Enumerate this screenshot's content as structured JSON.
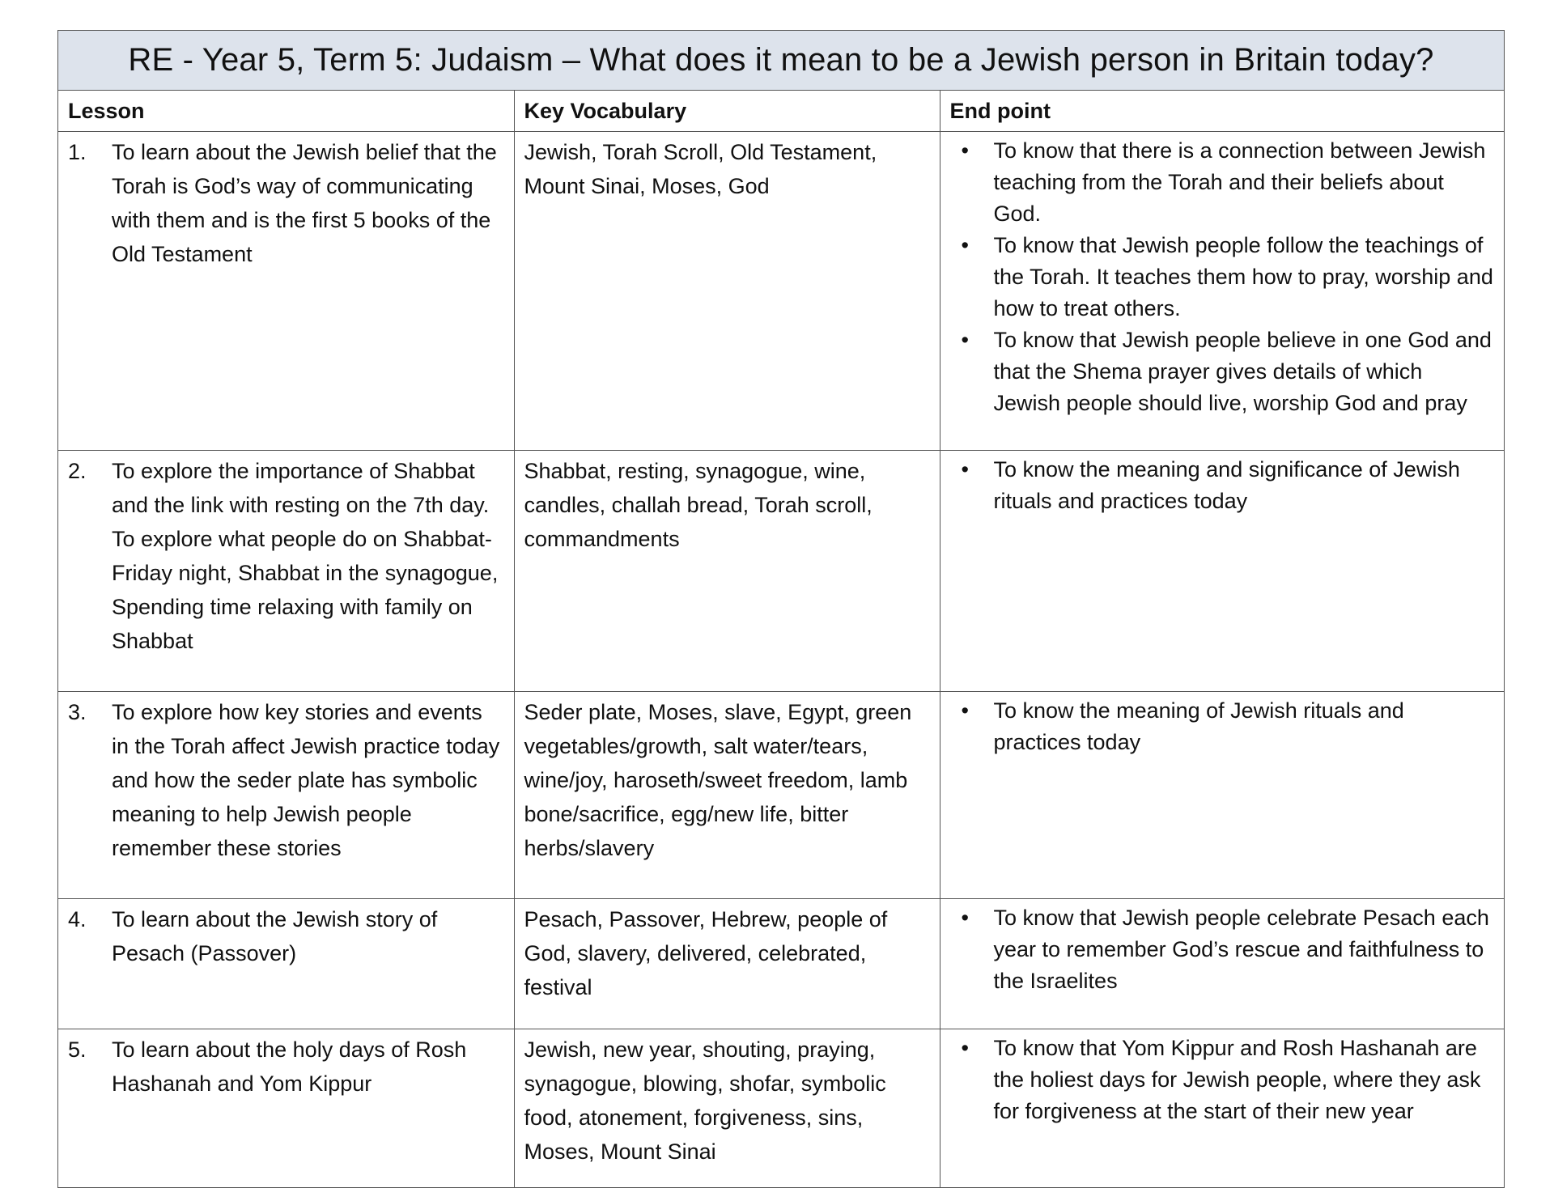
{
  "title": "RE - Year 5, Term 5: Judaism – What does it mean to be a Jewish person in Britain today?",
  "headers": {
    "lesson": "Lesson",
    "vocab": "Key Vocabulary",
    "endpoint": "End point"
  },
  "rows": [
    {
      "num": "1.",
      "lesson": "To learn about the Jewish belief that the Torah is God’s way of communicating with them and is the first 5 books of the Old Testament",
      "vocab": "Jewish, Torah Scroll, Old Testament, Mount Sinai, Moses, God",
      "endpoints": [
        "To know that there is a connection between Jewish teaching from the Torah and their beliefs about God.",
        "To know that Jewish people follow the teachings of the Torah. It teaches them how to pray, worship and how to treat others.",
        "To know that Jewish people believe in one God and that the Shema prayer gives details of which Jewish people should live, worship God and pray"
      ]
    },
    {
      "num": "2.",
      "lesson": "To explore the importance of Shabbat and the link with resting on the 7th day. To explore what people do on Shabbat- Friday night, Shabbat in the synagogue, Spending time relaxing with family on Shabbat",
      "vocab": "Shabbat, resting, synagogue, wine, candles, challah bread, Torah scroll, commandments",
      "endpoints": [
        "To know the meaning and significance of Jewish rituals and practices today"
      ]
    },
    {
      "num": "3.",
      "lesson": "To explore how key stories and events in the Torah affect Jewish practice today and how the seder plate has symbolic meaning to help Jewish people remember these stories",
      "vocab": "Seder plate, Moses, slave, Egypt, green vegetables/growth, salt water/tears, wine/joy, haroseth/sweet freedom, lamb bone/sacrifice, egg/new life, bitter herbs/slavery",
      "endpoints": [
        "To know the meaning of Jewish rituals and practices today"
      ]
    },
    {
      "num": "4.",
      "lesson": "To learn about the Jewish story of Pesach (Passover)",
      "vocab": "Pesach, Passover, Hebrew, people of God, slavery, delivered, celebrated, festival",
      "endpoints": [
        "To know that Jewish people celebrate Pesach each year to remember God’s rescue and faithfulness to the Israelites"
      ]
    },
    {
      "num": "5.",
      "lesson": "To learn about the holy days of Rosh Hashanah and Yom Kippur",
      "vocab": "Jewish, new year, shouting, praying, synagogue, blowing, shofar, symbolic food, atonement, forgiveness, sins, Moses, Mount Sinai",
      "endpoints": [
        "To know that Yom Kippur and Rosh Hashanah are the holiest days for Jewish people, where they ask for forgiveness at the start of their new year"
      ]
    }
  ],
  "colors": {
    "title_bg": "#dde3ec",
    "border": "#555555"
  }
}
